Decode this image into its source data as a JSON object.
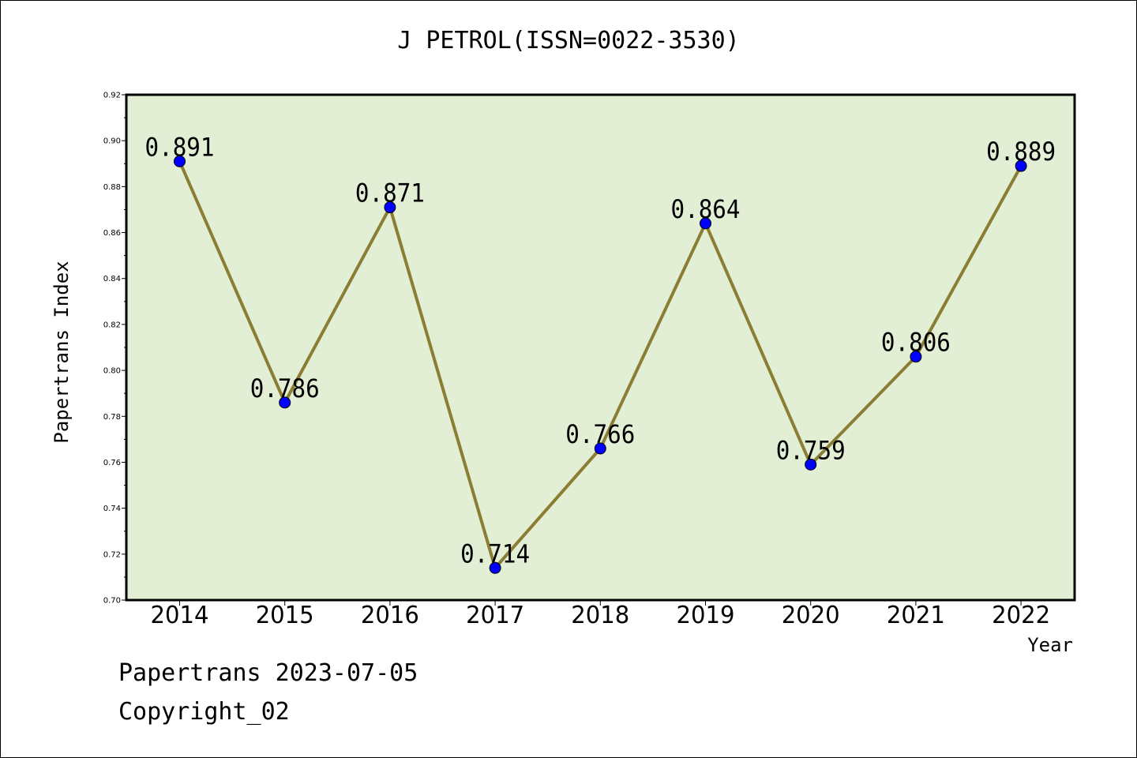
{
  "title": "J PETROL(ISSN=0022-3530)",
  "footer": {
    "line1": "Papertrans 2023-07-05",
    "line2": "Copyright_02"
  },
  "colors": {
    "plot_background": "#e2efd5",
    "line": "#8b7d33",
    "marker": "#0000ff"
  },
  "chart_data": {
    "type": "line",
    "title": "J PETROL(ISSN=0022-3530)",
    "xlabel": "Year",
    "ylabel": "Papertrans Index",
    "categories": [
      "2014",
      "2015",
      "2016",
      "2017",
      "2018",
      "2019",
      "2020",
      "2021",
      "2022"
    ],
    "values": [
      0.891,
      0.786,
      0.871,
      0.714,
      0.766,
      0.864,
      0.759,
      0.806,
      0.889
    ],
    "data_labels": [
      "0.891",
      "0.786",
      "0.871",
      "0.714",
      "0.766",
      "0.864",
      "0.759",
      "0.806",
      "0.889"
    ],
    "ylim": [
      0.7,
      0.92
    ],
    "yticks": [
      "0.70",
      "0.72",
      "0.74",
      "0.76",
      "0.78",
      "0.80",
      "0.82",
      "0.84",
      "0.86",
      "0.88",
      "0.90",
      "0.92"
    ],
    "grid": false,
    "legend": "none"
  }
}
